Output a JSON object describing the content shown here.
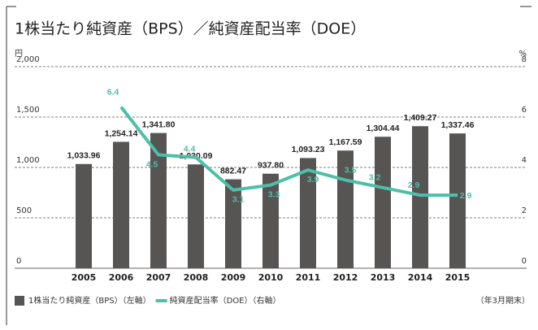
{
  "chart_data": {
    "type": "bar",
    "title": "1株当たり純資産（BPS）／純資産配当率（DOE）",
    "ylabel": "円",
    "y2label": "%",
    "note": "（年3月期末）",
    "categories": [
      "2005",
      "2006",
      "2007",
      "2008",
      "2009",
      "2010",
      "2011",
      "2012",
      "2013",
      "2014",
      "2015"
    ],
    "series": [
      {
        "name": "1株当たり純資産（BPS）（左軸）",
        "color": "#575454",
        "values": [
          1033.96,
          1254.14,
          1341.8,
          1030.09,
          882.47,
          937.8,
          1093.23,
          1167.59,
          1304.44,
          1409.27,
          1337.46
        ],
        "value_labels": [
          "1,033.96",
          "1,254.14",
          "1,341.80",
          "1,030.09",
          "882.47",
          "937.80",
          "1,093.23",
          "1,167.59",
          "1,304.44",
          "1,409.27",
          "1,337.46"
        ]
      },
      {
        "name": "純資産配当率（DOE）（右軸）",
        "color": "#4dbfa8",
        "axis": "y2",
        "values": [
          null,
          6.4,
          4.5,
          4.4,
          3.1,
          3.3,
          3.9,
          3.5,
          3.2,
          2.9,
          2.9
        ]
      }
    ],
    "ylim": [
      0,
      2000
    ],
    "yticks": [
      0,
      500,
      {
        "value": 1000,
        "label": "1,000"
      },
      {
        "value": 1500,
        "label": "1,500"
      },
      {
        "value": 2000,
        "label": "2,000"
      }
    ],
    "y2lim": [
      0,
      8
    ],
    "y2ticks": [
      0,
      2,
      4,
      6,
      8
    ],
    "grid": true
  }
}
